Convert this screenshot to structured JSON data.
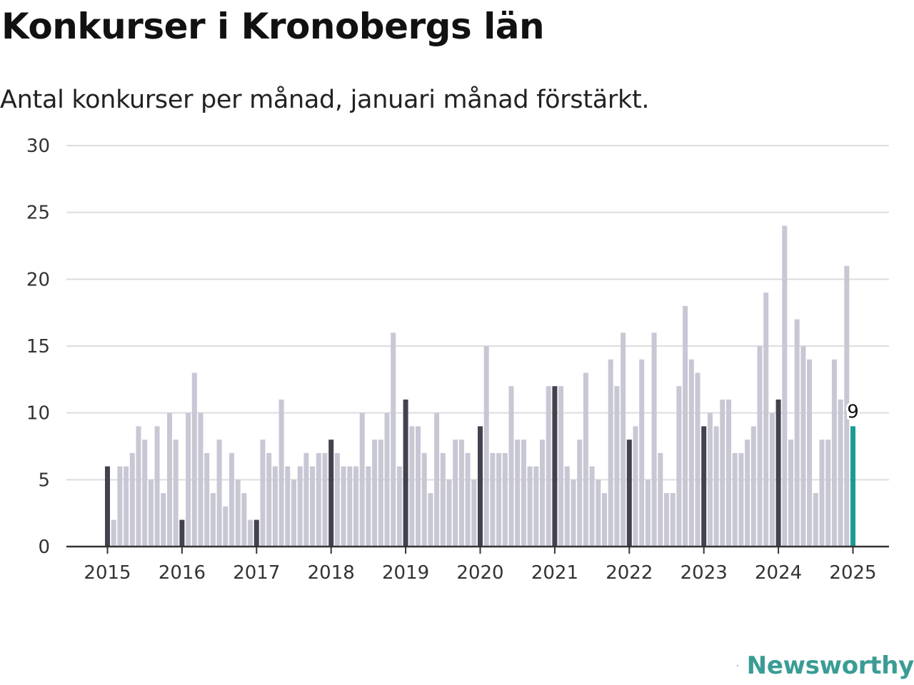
{
  "header": {
    "title": "Konkurser i Kronobergs län",
    "subtitle": "Antal konkurser per månad, januari månad förstärkt."
  },
  "brand": {
    "name": "Newsworthy",
    "icon": "newsworthy-logo-icon",
    "color": "#3a9c95"
  },
  "colors": {
    "bar": "#c8c7d4",
    "january_bar": "#43424f",
    "latest_bar": "#1a9b95",
    "grid": "#dddddd",
    "axis": "#333333"
  },
  "chart_data": {
    "type": "bar",
    "title": "Konkurser i Kronobergs län",
    "subtitle": "Antal konkurser per månad, januari månad förstärkt.",
    "xlabel": "",
    "ylabel": "",
    "ylim": [
      0,
      30
    ],
    "yticks": [
      0,
      5,
      10,
      15,
      20,
      25,
      30
    ],
    "xticks": [
      "2015",
      "2016",
      "2017",
      "2018",
      "2019",
      "2020",
      "2021",
      "2022",
      "2023",
      "2024",
      "2025"
    ],
    "grid": true,
    "start": "2015-01",
    "end": "2025-01",
    "highlight": "January months emphasized; latest month highlighted",
    "values": [
      6,
      2,
      6,
      6,
      7,
      9,
      8,
      5,
      9,
      4,
      10,
      8,
      2,
      10,
      13,
      10,
      7,
      4,
      8,
      3,
      7,
      5,
      4,
      2,
      2,
      8,
      7,
      6,
      11,
      6,
      5,
      6,
      7,
      6,
      7,
      7,
      8,
      7,
      6,
      6,
      6,
      10,
      6,
      8,
      8,
      10,
      16,
      6,
      11,
      9,
      9,
      7,
      4,
      10,
      7,
      5,
      8,
      8,
      7,
      5,
      9,
      15,
      7,
      7,
      7,
      12,
      8,
      8,
      6,
      6,
      8,
      12,
      12,
      12,
      6,
      5,
      8,
      13,
      6,
      5,
      4,
      14,
      12,
      16,
      8,
      9,
      14,
      5,
      16,
      7,
      4,
      4,
      12,
      18,
      14,
      13,
      9,
      10,
      9,
      11,
      11,
      7,
      7,
      8,
      9,
      15,
      19,
      10,
      11,
      24,
      8,
      17,
      15,
      14,
      4,
      8,
      8,
      14,
      11,
      21,
      9
    ],
    "annotation": {
      "label": "9"
    }
  }
}
